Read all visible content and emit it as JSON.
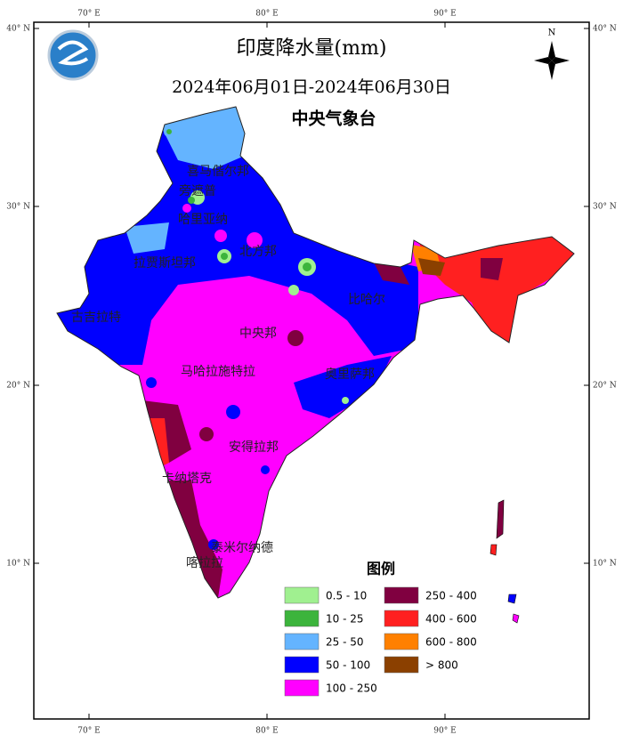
{
  "header": {
    "title": "印度降水量(mm)",
    "subtitle": "2024年06月01日-2024年06月30日",
    "agency": "中央气象台"
  },
  "graticule": {
    "longitudes": [
      "70° E",
      "80° E",
      "90° E"
    ],
    "latitudes": [
      "40° N",
      "30° N",
      "20° N",
      "10° N"
    ]
  },
  "regions": [
    "喜马偕尔邦",
    "旁遮普",
    "哈里亚纳",
    "北方邦",
    "拉贾斯坦邦",
    "比哈尔",
    "古吉拉特",
    "中央邦",
    "马哈拉施特拉",
    "奥里萨邦",
    "安得拉邦",
    "卡纳塔克",
    "泰米尔纳德",
    "喀拉拉"
  ],
  "legend": {
    "title": "图例",
    "items": [
      {
        "label": "0.5 - 10",
        "color": "#a0f090"
      },
      {
        "label": "10 - 25",
        "color": "#3cb43c"
      },
      {
        "label": "25 - 50",
        "color": "#64b4ff"
      },
      {
        "label": "50 - 100",
        "color": "#0000ff"
      },
      {
        "label": "100 - 250",
        "color": "#ff00ff"
      },
      {
        "label": "250 - 400",
        "color": "#800040"
      },
      {
        "label": "400 - 600",
        "color": "#ff2020"
      },
      {
        "label": "600 - 800",
        "color": "#ff8000"
      },
      {
        "label": "> 800",
        "color": "#8b4000"
      }
    ]
  }
}
